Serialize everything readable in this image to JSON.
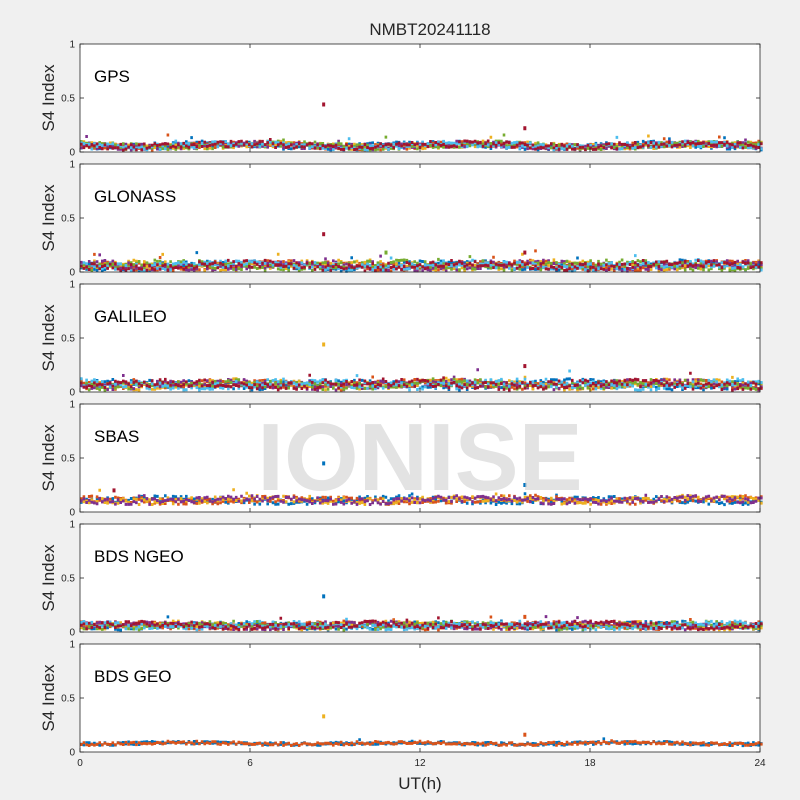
{
  "figure": {
    "title": "NMBT20241118",
    "watermark": "IONISE",
    "xlabel": "UT(h)",
    "ylabel": "S4 Index",
    "xticks": [
      "0",
      "6",
      "12",
      "18",
      "24"
    ],
    "yticks": [
      "0",
      "0.5",
      "1"
    ],
    "colors": [
      "#0072BD",
      "#D95319",
      "#EDB120",
      "#7E2F8E",
      "#77AC30",
      "#4DBEEE",
      "#A2142F"
    ]
  },
  "chart_data": [
    {
      "type": "scatter",
      "panel": "GPS",
      "label": "GPS",
      "xlim": [
        0,
        24
      ],
      "ylim": [
        0,
        1
      ],
      "grid": false,
      "baseline_s4": 0.06,
      "spread_s4": 0.04,
      "series_count": 7,
      "outliers": [
        {
          "x": 8.6,
          "y": 0.44,
          "color": "#A2142F"
        },
        {
          "x": 15.7,
          "y": 0.22,
          "color": "#A2142F"
        }
      ]
    },
    {
      "type": "scatter",
      "panel": "GLONASS",
      "label": "GLONASS",
      "xlim": [
        0,
        24
      ],
      "ylim": [
        0,
        1
      ],
      "grid": false,
      "baseline_s4": 0.06,
      "spread_s4": 0.05,
      "series_count": 7,
      "outliers": [
        {
          "x": 8.6,
          "y": 0.35,
          "color": "#A2142F"
        },
        {
          "x": 10.8,
          "y": 0.18,
          "color": "#77AC30"
        },
        {
          "x": 15.7,
          "y": 0.18,
          "color": "#A2142F"
        }
      ]
    },
    {
      "type": "scatter",
      "panel": "GALILEO",
      "label": "GALILEO",
      "xlim": [
        0,
        24
      ],
      "ylim": [
        0,
        1
      ],
      "grid": false,
      "baseline_s4": 0.07,
      "spread_s4": 0.05,
      "series_count": 7,
      "outliers": [
        {
          "x": 8.6,
          "y": 0.44,
          "color": "#EDB120"
        },
        {
          "x": 15.7,
          "y": 0.24,
          "color": "#A2142F"
        }
      ]
    },
    {
      "type": "scatter",
      "panel": "SBAS",
      "label": "SBAS",
      "xlim": [
        0,
        24
      ],
      "ylim": [
        0,
        1
      ],
      "grid": false,
      "baseline_s4": 0.11,
      "spread_s4": 0.04,
      "series_count": 4,
      "outliers": [
        {
          "x": 8.6,
          "y": 0.45,
          "color": "#0072BD"
        },
        {
          "x": 15.7,
          "y": 0.25,
          "color": "#0072BD"
        },
        {
          "x": 1.2,
          "y": 0.2,
          "color": "#A2142F"
        }
      ]
    },
    {
      "type": "scatter",
      "panel": "BDS NGEO",
      "label": "BDS NGEO",
      "xlim": [
        0,
        24
      ],
      "ylim": [
        0,
        1
      ],
      "grid": false,
      "baseline_s4": 0.06,
      "spread_s4": 0.04,
      "series_count": 7,
      "outliers": [
        {
          "x": 8.6,
          "y": 0.33,
          "color": "#0072BD"
        },
        {
          "x": 15.7,
          "y": 0.14,
          "color": "#D95319"
        }
      ]
    },
    {
      "type": "scatter",
      "panel": "BDS GEO",
      "label": "BDS GEO",
      "xlim": [
        0,
        24
      ],
      "ylim": [
        0,
        1
      ],
      "grid": false,
      "baseline_s4": 0.08,
      "spread_s4": 0.02,
      "series_count": 2,
      "outliers": [
        {
          "x": 8.6,
          "y": 0.33,
          "color": "#EDB120"
        },
        {
          "x": 15.7,
          "y": 0.16,
          "color": "#D95319"
        }
      ]
    }
  ]
}
